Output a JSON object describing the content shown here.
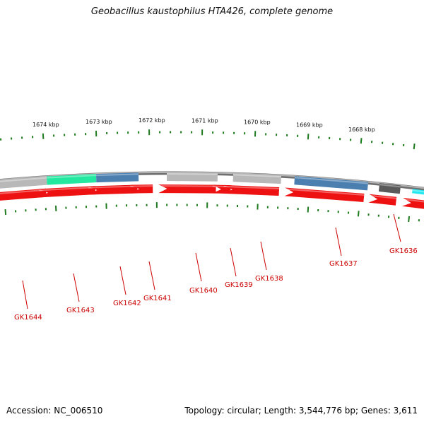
{
  "title": "Geobacillus kaustophilus HTA426, complete genome",
  "footer": {
    "accession": "Accession: NC_006510",
    "summary": "Topology: circular; Length: 3,544,776 bp; Genes: 3,611"
  },
  "scale_labels": [
    "1674 kbp",
    "1673 kbp",
    "1672 kbp",
    "1671 kbp",
    "1670 kbp",
    "1669 kbp",
    "1668 kbp"
  ],
  "gene_labels": [
    "GK1644",
    "GK1643",
    "GK1642",
    "GK1641",
    "GK1640",
    "GK1639",
    "GK1638",
    "GK1637",
    "GK1636"
  ],
  "colors": {
    "forward_gene": "#ee1111",
    "backbone": "#8a8a8a",
    "tick": "#1e7a1e",
    "label": "#cc0000",
    "steelblue": "#4a7fb0",
    "teal": "#22e8a0",
    "gray": "#b8b8b8",
    "darkgray": "#5a5a5a",
    "cyan": "#22e8f0"
  }
}
